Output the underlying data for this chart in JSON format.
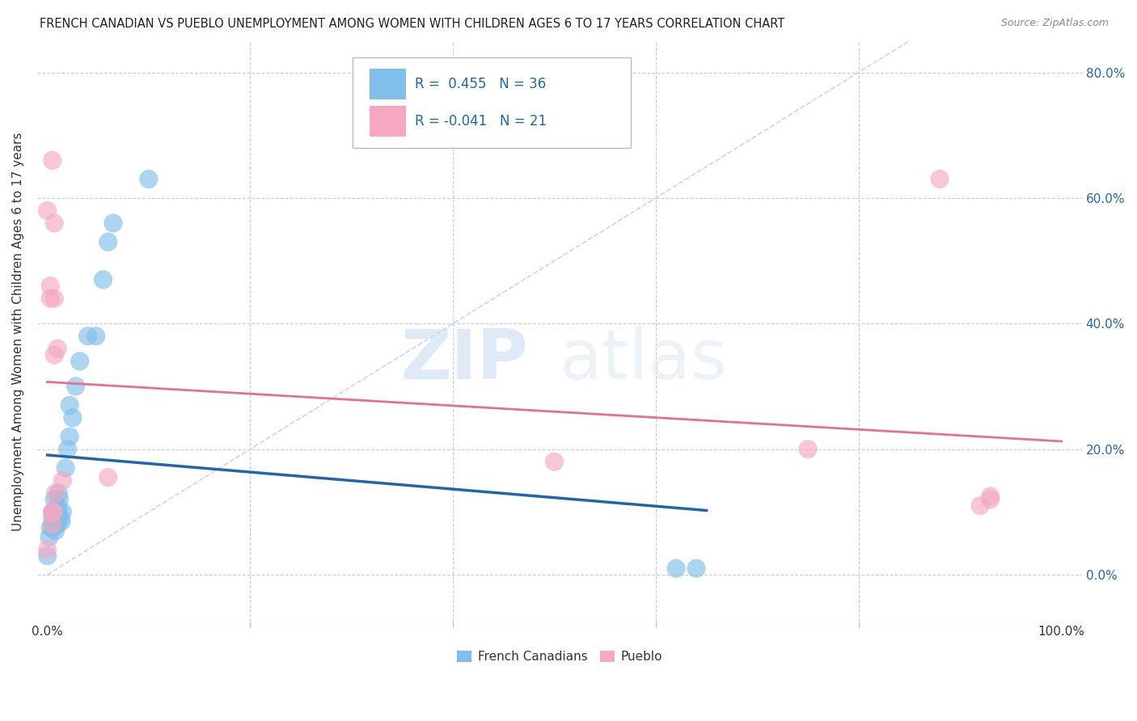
{
  "title": "FRENCH CANADIAN VS PUEBLO UNEMPLOYMENT AMONG WOMEN WITH CHILDREN AGES 6 TO 17 YEARS CORRELATION CHART",
  "source": "Source: ZipAtlas.com",
  "ylabel": "Unemployment Among Women with Children Ages 6 to 17 years",
  "blue_R": 0.455,
  "blue_N": 36,
  "pink_R": -0.041,
  "pink_N": 21,
  "blue_color": "#7fbfea",
  "pink_color": "#f5a8c0",
  "blue_line_color": "#2166ac",
  "pink_line_color": "#e8708a",
  "diagonal_color": "#c8d8e8",
  "legend_label_blue": "French Canadians",
  "legend_label_pink": "Pueblo",
  "watermark_zip": "ZIP",
  "watermark_atlas": "atlas",
  "blue_points_x": [
    0.0,
    0.002,
    0.003,
    0.005,
    0.005,
    0.005,
    0.006,
    0.007,
    0.007,
    0.008,
    0.008,
    0.009,
    0.01,
    0.01,
    0.01,
    0.011,
    0.011,
    0.012,
    0.013,
    0.014,
    0.015,
    0.018,
    0.02,
    0.022,
    0.022,
    0.025,
    0.028,
    0.032,
    0.04,
    0.048,
    0.055,
    0.06,
    0.065,
    0.1,
    0.62,
    0.64
  ],
  "blue_points_y": [
    0.03,
    0.06,
    0.075,
    0.08,
    0.09,
    0.1,
    0.075,
    0.1,
    0.12,
    0.07,
    0.08,
    0.09,
    0.08,
    0.09,
    0.11,
    0.1,
    0.13,
    0.12,
    0.09,
    0.085,
    0.1,
    0.17,
    0.2,
    0.22,
    0.27,
    0.25,
    0.3,
    0.34,
    0.38,
    0.38,
    0.47,
    0.53,
    0.56,
    0.63,
    0.01,
    0.01
  ],
  "pink_points_x": [
    0.0,
    0.0,
    0.003,
    0.003,
    0.005,
    0.005,
    0.006,
    0.007,
    0.007,
    0.007,
    0.008,
    0.01,
    0.015,
    0.06,
    0.5,
    0.75,
    0.88,
    0.92,
    0.93,
    0.93,
    0.005
  ],
  "pink_points_y": [
    0.04,
    0.58,
    0.44,
    0.46,
    0.08,
    0.1,
    0.1,
    0.35,
    0.44,
    0.56,
    0.13,
    0.36,
    0.15,
    0.155,
    0.18,
    0.2,
    0.63,
    0.11,
    0.12,
    0.125,
    0.66
  ]
}
